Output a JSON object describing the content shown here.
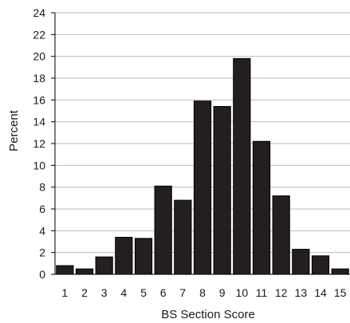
{
  "chart_data": {
    "type": "bar",
    "categories": [
      "1",
      "2",
      "3",
      "4",
      "5",
      "6",
      "7",
      "8",
      "9",
      "10",
      "11",
      "12",
      "13",
      "14",
      "15"
    ],
    "values": [
      0.8,
      0.5,
      1.6,
      3.4,
      3.3,
      8.1,
      6.8,
      15.9,
      15.4,
      19.8,
      12.2,
      7.2,
      2.3,
      1.7,
      0.5
    ],
    "title": "",
    "xlabel": "BS Section Score",
    "ylabel": "Percent",
    "ylim": [
      0,
      24
    ],
    "yticks": [
      0,
      2,
      4,
      6,
      8,
      10,
      12,
      14,
      16,
      18,
      20,
      22,
      24
    ],
    "grid": "horizontal",
    "legend": "none",
    "bar_color": "#231f20",
    "grid_color": "#bdbdbd"
  }
}
